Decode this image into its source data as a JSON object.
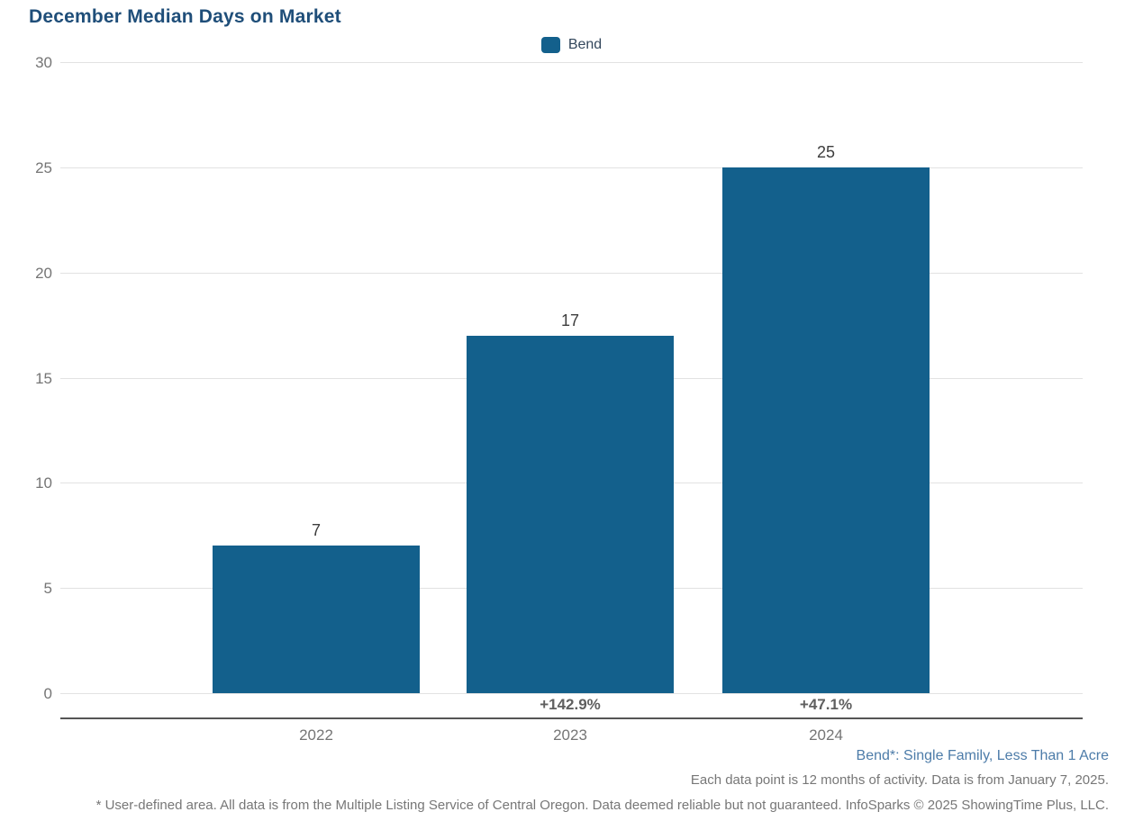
{
  "header": {
    "title": "December Median Days on Market"
  },
  "legend": {
    "items": [
      {
        "label": "Bend",
        "color": "#13608c"
      }
    ]
  },
  "chart_data": {
    "type": "bar",
    "title": "December Median Days on Market",
    "categories": [
      "2022",
      "2023",
      "2024"
    ],
    "series": [
      {
        "name": "Bend",
        "values": [
          7,
          17,
          25
        ]
      }
    ],
    "value_labels": [
      "7",
      "17",
      "25"
    ],
    "pct_change_labels": [
      "",
      "+142.9%",
      "+47.1%"
    ],
    "xlabel": "",
    "ylabel": "",
    "ylim": [
      0,
      30
    ],
    "yticks": [
      0,
      5,
      10,
      15,
      20,
      25,
      30
    ],
    "grid": "horizontal",
    "legend_position": "top-center",
    "bar_color": "#13608c"
  },
  "notes": {
    "series_definition": "Bend*: Single Family, Less Than 1 Acre",
    "data_note": "Each data point is 12 months of activity. Data is from January 7, 2025.",
    "footnote": "* User-defined area. All data is from the Multiple Listing Service of Central Oregon. Data deemed reliable but not guaranteed. InfoSparks © 2025 ShowingTime Plus, LLC."
  },
  "colors": {
    "title": "#1f4e79",
    "bar": "#13608c",
    "legend_text": "#33475c",
    "note_blue": "#4d7ca9",
    "axis_text": "#757575",
    "value_label": "#3d3d3d",
    "pct_label": "#5f5f5f",
    "gridline": "#e2e2e2",
    "axis_line": "#555555",
    "footnote_text": "#777777"
  }
}
